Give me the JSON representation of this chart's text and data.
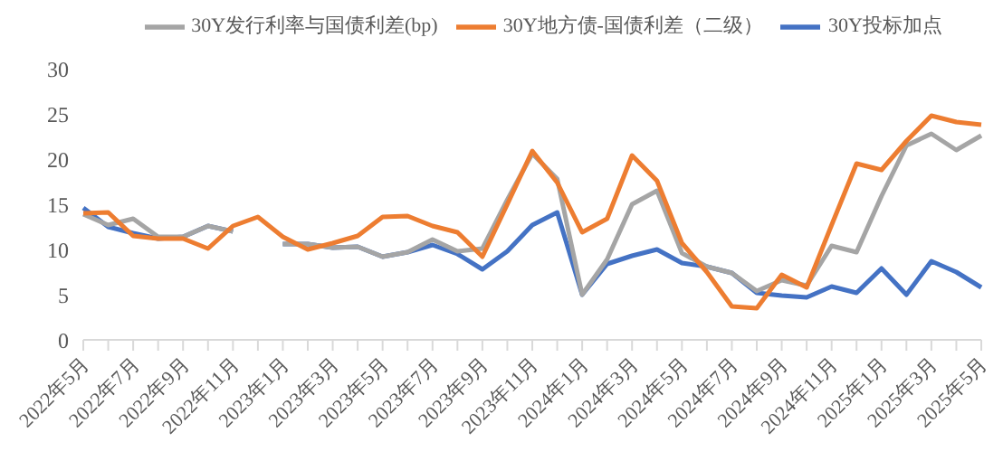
{
  "chart_data": {
    "type": "line",
    "categories": [
      "2022年5月",
      null,
      "2022年7月",
      null,
      "2022年9月",
      null,
      "2022年11月",
      null,
      "2023年1月",
      null,
      "2023年3月",
      null,
      "2023年5月",
      null,
      "2023年7月",
      null,
      "2023年9月",
      null,
      "2023年11月",
      null,
      "2024年1月",
      null,
      "2024年3月",
      null,
      "2024年5月",
      null,
      "2024年7月",
      null,
      "2024年9月",
      null,
      "2024年11月",
      null,
      "2025年1月",
      null,
      "2025年3月",
      null,
      "2025年5月"
    ],
    "series": [
      {
        "name": "30Y投标加点",
        "color": "#4472c4",
        "values": [
          14.6,
          12.5,
          11.8,
          11.2,
          11.4,
          12.6,
          12.0,
          null,
          10.6,
          10.6,
          10.2,
          10.3,
          9.2,
          9.7,
          10.5,
          9.5,
          7.8,
          9.8,
          12.7,
          14.1,
          5.0,
          8.4,
          9.3,
          10.0,
          8.5,
          8.1,
          7.4,
          5.2,
          4.9,
          4.7,
          5.9,
          5.2,
          7.9,
          5.0,
          8.7,
          7.5,
          5.8
        ]
      },
      {
        "name": "30Y发行利率与国债利差(bp)",
        "color": "#a5a5a5",
        "values": [
          13.9,
          12.7,
          13.4,
          11.4,
          11.4,
          12.6,
          12.0,
          null,
          10.6,
          10.6,
          10.2,
          10.3,
          9.2,
          9.7,
          11.1,
          9.8,
          10.1,
          15.5,
          20.6,
          17.8,
          5.0,
          8.9,
          15.0,
          16.5,
          9.6,
          8.1,
          7.4,
          5.4,
          6.6,
          6.0,
          10.4,
          9.7,
          15.9,
          21.5,
          22.8,
          21.0,
          22.6
        ]
      },
      {
        "name": "30Y地方债-国债利差（二级）",
        "color": "#ed7d31",
        "values": [
          14.0,
          14.1,
          11.5,
          11.2,
          11.2,
          10.1,
          12.6,
          13.6,
          11.4,
          10.0,
          10.7,
          11.5,
          13.6,
          13.7,
          12.6,
          11.9,
          9.2,
          15.0,
          20.9,
          17.4,
          11.9,
          13.4,
          20.4,
          17.6,
          10.7,
          7.5,
          3.7,
          3.5,
          7.2,
          5.8,
          12.7,
          19.5,
          18.8,
          22.0,
          24.8,
          24.1,
          23.8
        ]
      }
    ],
    "ylim": [
      0,
      30
    ],
    "yticks": [
      0,
      5,
      10,
      15,
      20,
      25,
      30
    ],
    "grid": false,
    "legend": "top",
    "marker": "none",
    "line_style": "solid"
  }
}
